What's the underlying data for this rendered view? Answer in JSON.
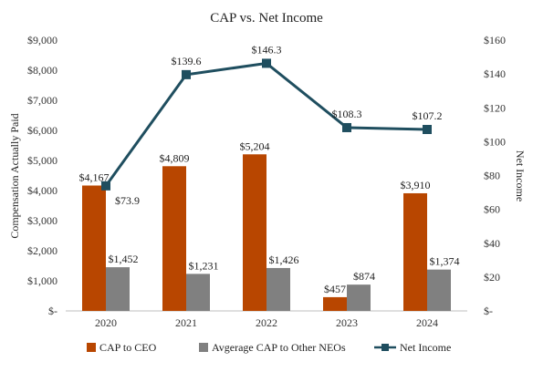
{
  "chart_data": {
    "type": "bar+line",
    "title": "CAP vs. Net Income",
    "categories": [
      "2020",
      "2021",
      "2022",
      "2023",
      "2024"
    ],
    "ylabel_left": "Compensation Actually Paid",
    "ylabel_right": "Net Income",
    "ylim_left": [
      0,
      9000
    ],
    "ylim_right": [
      0,
      160
    ],
    "yticks_left": [
      "$-",
      "$1,000",
      "$2,000",
      "$3,000",
      "$4,000",
      "$5,000",
      "$6,000",
      "$7,000",
      "$8,000",
      "$9,000"
    ],
    "yticks_right": [
      "$-",
      "$20",
      "$40",
      "$60",
      "$80",
      "$100",
      "$120",
      "$140",
      "$160"
    ],
    "grid": false,
    "legend_position": "bottom",
    "series": [
      {
        "name": "CAP to CEO",
        "kind": "bar",
        "axis": "left",
        "color": "#B84600",
        "values": [
          4167,
          4809,
          5204,
          457,
          3910
        ],
        "labels": [
          "$4,167",
          "$4,809",
          "$5,204",
          "$457",
          "$3,910"
        ]
      },
      {
        "name": "Avgerage CAP to Other NEOs",
        "kind": "bar",
        "axis": "left",
        "color": "#808080",
        "values": [
          1452,
          1231,
          1426,
          874,
          1374
        ],
        "labels": [
          "$1,452",
          "$1,231",
          "$1,426",
          "$874",
          "$1,374"
        ]
      },
      {
        "name": "Net Income",
        "kind": "line",
        "axis": "right",
        "color": "#1F4E5F",
        "marker": "square",
        "values": [
          73.9,
          139.6,
          146.3,
          108.3,
          107.2
        ],
        "labels": [
          "$73.9",
          "$139.6",
          "$146.3",
          "$108.3",
          "$107.2"
        ]
      }
    ]
  }
}
